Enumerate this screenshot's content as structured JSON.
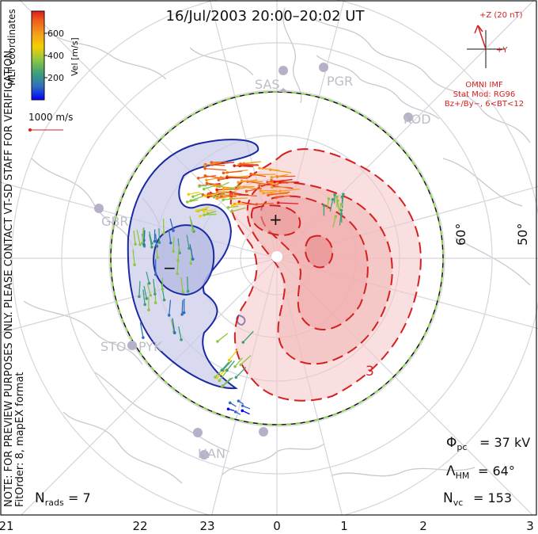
{
  "header": {
    "title": "16/Jul/2003 20:00–20:02 UT"
  },
  "side_note": {
    "line1": "NOTE: FOR PREVIEW PURPOSES ONLY. PLEASE CONTACT VT-SD STAFF FOR VERIFICATION.",
    "line2": "FitOrder: 8, mapEX format"
  },
  "legend": {
    "colorbar_label": "Vel [m/s]",
    "coords_label": "MLT coordinates",
    "ticks": [
      "600",
      "400",
      "200"
    ],
    "colors": [
      "#0000ff",
      "#2d6fbf",
      "#3ea07a",
      "#8ec640",
      "#f4d000",
      "#f59c1a",
      "#ef5a1d",
      "#e01a1a"
    ],
    "ref_vector_label": "1000 m/s"
  },
  "imf": {
    "z_label": "+Z (20 nT)",
    "y_label": "+Y",
    "source": "OMNI IMF",
    "stat_model": "Stat Mod: RG96",
    "condition": "Bz+/By−, 6<BT<12"
  },
  "stations": [
    "SAS",
    "PGR",
    "KOD",
    "GBR",
    "STO",
    "PYK",
    "HAN"
  ],
  "latitude_labels": [
    "60°",
    "50°"
  ],
  "contour_labels": {
    "negative": "−",
    "positive": "+",
    "pos_value": "3"
  },
  "stats": {
    "phi_pc": "= 37 kV",
    "lambda_hm": "= 64°",
    "n_vc": "= 153",
    "n_rads": "= 7"
  },
  "mlt_axis": [
    "21",
    "22",
    "23",
    "0",
    "1",
    "2",
    "3"
  ],
  "colors": {
    "negative_cell": "#1a2aa0",
    "positive_cell": "#d42020",
    "heppner_boundary": "#8ad04a",
    "landmass": "#cfcfd6"
  }
}
